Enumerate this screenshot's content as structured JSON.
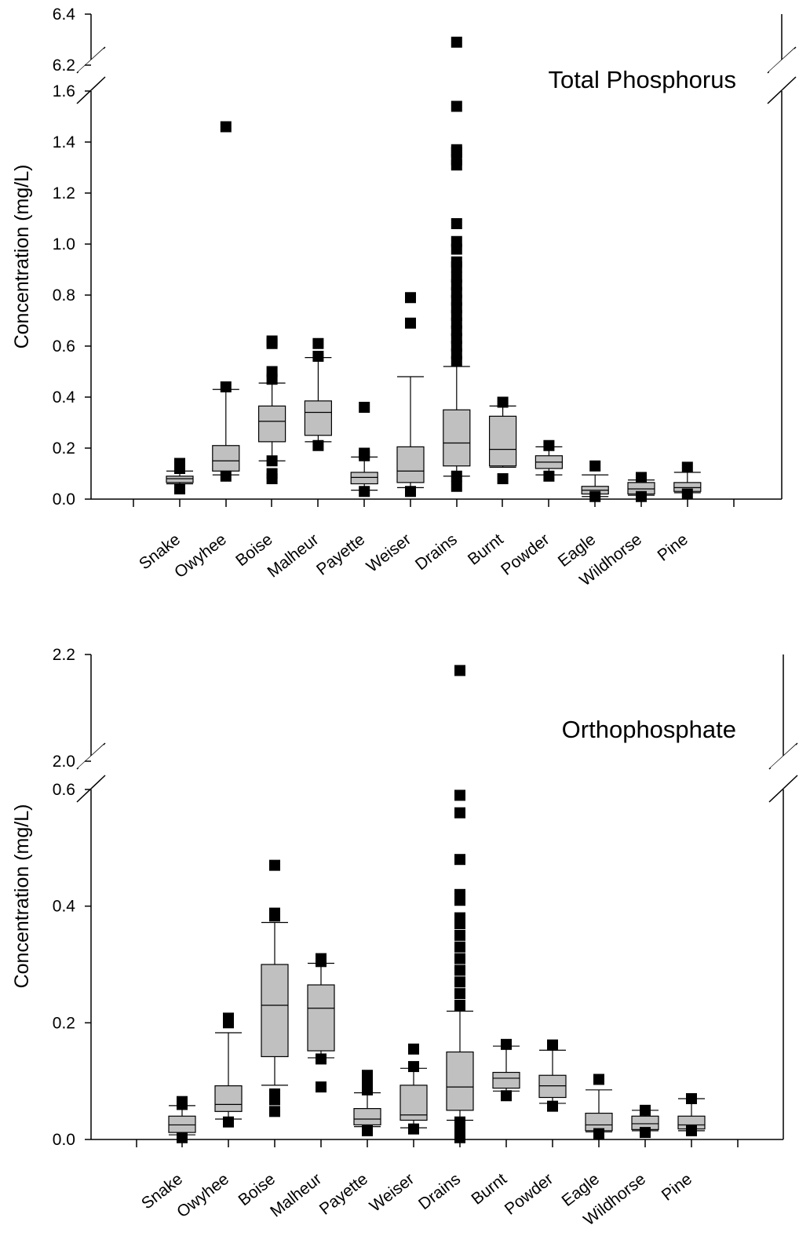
{
  "chart_data": [
    {
      "type": "box",
      "title": "Total Phosphorus",
      "ylabel": "Concentration (mg/L)",
      "categories": [
        "Snake",
        "Owyhee",
        "Boise",
        "Malheur",
        "Payette",
        "Weiser",
        "Drains",
        "Burnt",
        "Powder",
        "Eagle",
        "Wildhorse",
        "Pine"
      ],
      "axis_break": {
        "lower_range": [
          0,
          1.6
        ],
        "upper_range": [
          6.2,
          6.4
        ]
      },
      "yticks": [
        "0.0",
        "0.2",
        "0.4",
        "0.6",
        "0.8",
        "1.0",
        "1.2",
        "1.4",
        "1.6",
        "6.2",
        "6.4"
      ],
      "boxes": [
        {
          "whisker_low": 0.06,
          "q1": 0.065,
          "median": 0.08,
          "q3": 0.09,
          "whisker_high": 0.11,
          "outliers": [
            0.04,
            0.12,
            0.14
          ]
        },
        {
          "whisker_low": 0.095,
          "q1": 0.11,
          "median": 0.15,
          "q3": 0.21,
          "whisker_high": 0.43,
          "outliers": [
            0.09,
            0.44,
            1.46
          ]
        },
        {
          "whisker_low": 0.15,
          "q1": 0.225,
          "median": 0.305,
          "q3": 0.365,
          "whisker_high": 0.455,
          "outliers": [
            0.08,
            0.1,
            0.15,
            0.47,
            0.5,
            0.61,
            0.62
          ]
        },
        {
          "whisker_low": 0.225,
          "q1": 0.25,
          "median": 0.34,
          "q3": 0.385,
          "whisker_high": 0.555,
          "outliers": [
            0.21,
            0.56,
            0.61
          ]
        },
        {
          "whisker_low": 0.035,
          "q1": 0.06,
          "median": 0.085,
          "q3": 0.105,
          "whisker_high": 0.165,
          "outliers": [
            0.03,
            0.17,
            0.18,
            0.36
          ]
        },
        {
          "whisker_low": 0.045,
          "q1": 0.065,
          "median": 0.11,
          "q3": 0.205,
          "whisker_high": 0.48,
          "outliers": [
            0.03,
            0.69,
            0.79
          ]
        },
        {
          "whisker_low": 0.09,
          "q1": 0.13,
          "median": 0.22,
          "q3": 0.35,
          "whisker_high": 0.52,
          "outliers": [
            0.05,
            0.09,
            0.54,
            0.57,
            0.6,
            0.63,
            0.66,
            0.69,
            0.72,
            0.75,
            0.78,
            0.81,
            0.84,
            0.87,
            0.91,
            0.93,
            0.98,
            1.01,
            1.08,
            1.31,
            1.33,
            1.36,
            1.37,
            1.54,
            6.29
          ]
        },
        {
          "whisker_low": 0.125,
          "q1": 0.13,
          "median": 0.195,
          "q3": 0.325,
          "whisker_high": 0.365,
          "outliers": [
            0.08,
            0.38
          ]
        },
        {
          "whisker_low": 0.095,
          "q1": 0.12,
          "median": 0.145,
          "q3": 0.17,
          "whisker_high": 0.205,
          "outliers": [
            0.09,
            0.21
          ]
        },
        {
          "whisker_low": 0.01,
          "q1": 0.02,
          "median": 0.035,
          "q3": 0.05,
          "whisker_high": 0.095,
          "outliers": [
            0.01,
            0.13
          ]
        },
        {
          "whisker_low": 0.015,
          "q1": 0.02,
          "median": 0.04,
          "q3": 0.065,
          "whisker_high": 0.075,
          "outliers": [
            0.01,
            0.085
          ]
        },
        {
          "whisker_low": 0.025,
          "q1": 0.03,
          "median": 0.045,
          "q3": 0.065,
          "whisker_high": 0.105,
          "outliers": [
            0.02,
            0.125
          ]
        }
      ]
    },
    {
      "type": "box",
      "title": "Orthophosphate",
      "ylabel": "Concentration (mg/L)",
      "categories": [
        "Snake",
        "Owyhee",
        "Boise",
        "Malheur",
        "Payette",
        "Weiser",
        "Drains",
        "Burnt",
        "Powder",
        "Eagle",
        "Wildhorse",
        "Pine"
      ],
      "axis_break": {
        "lower_range": [
          0,
          0.6
        ],
        "upper_range": [
          2.0,
          2.2
        ]
      },
      "yticks": [
        "0.0",
        "0.2",
        "0.4",
        "0.6",
        "2.0",
        "2.2"
      ],
      "boxes": [
        {
          "whisker_low": 0.008,
          "q1": 0.012,
          "median": 0.025,
          "q3": 0.04,
          "whisker_high": 0.058,
          "outliers": [
            0.003,
            0.06,
            0.065
          ]
        },
        {
          "whisker_low": 0.035,
          "q1": 0.048,
          "median": 0.06,
          "q3": 0.092,
          "whisker_high": 0.183,
          "outliers": [
            0.03,
            0.2,
            0.208
          ]
        },
        {
          "whisker_low": 0.093,
          "q1": 0.142,
          "median": 0.23,
          "q3": 0.3,
          "whisker_high": 0.372,
          "outliers": [
            0.048,
            0.068,
            0.078,
            0.383,
            0.388,
            0.47
          ]
        },
        {
          "whisker_low": 0.14,
          "q1": 0.152,
          "median": 0.225,
          "q3": 0.265,
          "whisker_high": 0.302,
          "outliers": [
            0.09,
            0.138,
            0.305,
            0.31
          ]
        },
        {
          "whisker_low": 0.022,
          "q1": 0.025,
          "median": 0.035,
          "q3": 0.053,
          "whisker_high": 0.08,
          "outliers": [
            0.015,
            0.085,
            0.098,
            0.11
          ]
        },
        {
          "whisker_low": 0.02,
          "q1": 0.033,
          "median": 0.042,
          "q3": 0.093,
          "whisker_high": 0.122,
          "outliers": [
            0.018,
            0.125,
            0.155
          ]
        },
        {
          "whisker_low": 0.033,
          "q1": 0.05,
          "median": 0.09,
          "q3": 0.15,
          "whisker_high": 0.22,
          "outliers": [
            0.003,
            0.01,
            0.02,
            0.03,
            0.23,
            0.25,
            0.27,
            0.29,
            0.31,
            0.33,
            0.35,
            0.37,
            0.38,
            0.41,
            0.42,
            0.48,
            0.56,
            0.59,
            2.17
          ]
        },
        {
          "whisker_low": 0.083,
          "q1": 0.088,
          "median": 0.105,
          "q3": 0.115,
          "whisker_high": 0.16,
          "outliers": [
            0.075,
            0.163
          ]
        },
        {
          "whisker_low": 0.062,
          "q1": 0.072,
          "median": 0.092,
          "q3": 0.11,
          "whisker_high": 0.153,
          "outliers": [
            0.057,
            0.162
          ]
        },
        {
          "whisker_low": 0.013,
          "q1": 0.015,
          "median": 0.025,
          "q3": 0.045,
          "whisker_high": 0.085,
          "outliers": [
            0.01,
            0.103
          ]
        },
        {
          "whisker_low": 0.015,
          "q1": 0.017,
          "median": 0.027,
          "q3": 0.04,
          "whisker_high": 0.05,
          "outliers": [
            0.012,
            0.05
          ]
        },
        {
          "whisker_low": 0.015,
          "q1": 0.018,
          "median": 0.025,
          "q3": 0.04,
          "whisker_high": 0.07,
          "outliers": [
            0.015,
            0.07
          ]
        }
      ]
    }
  ]
}
